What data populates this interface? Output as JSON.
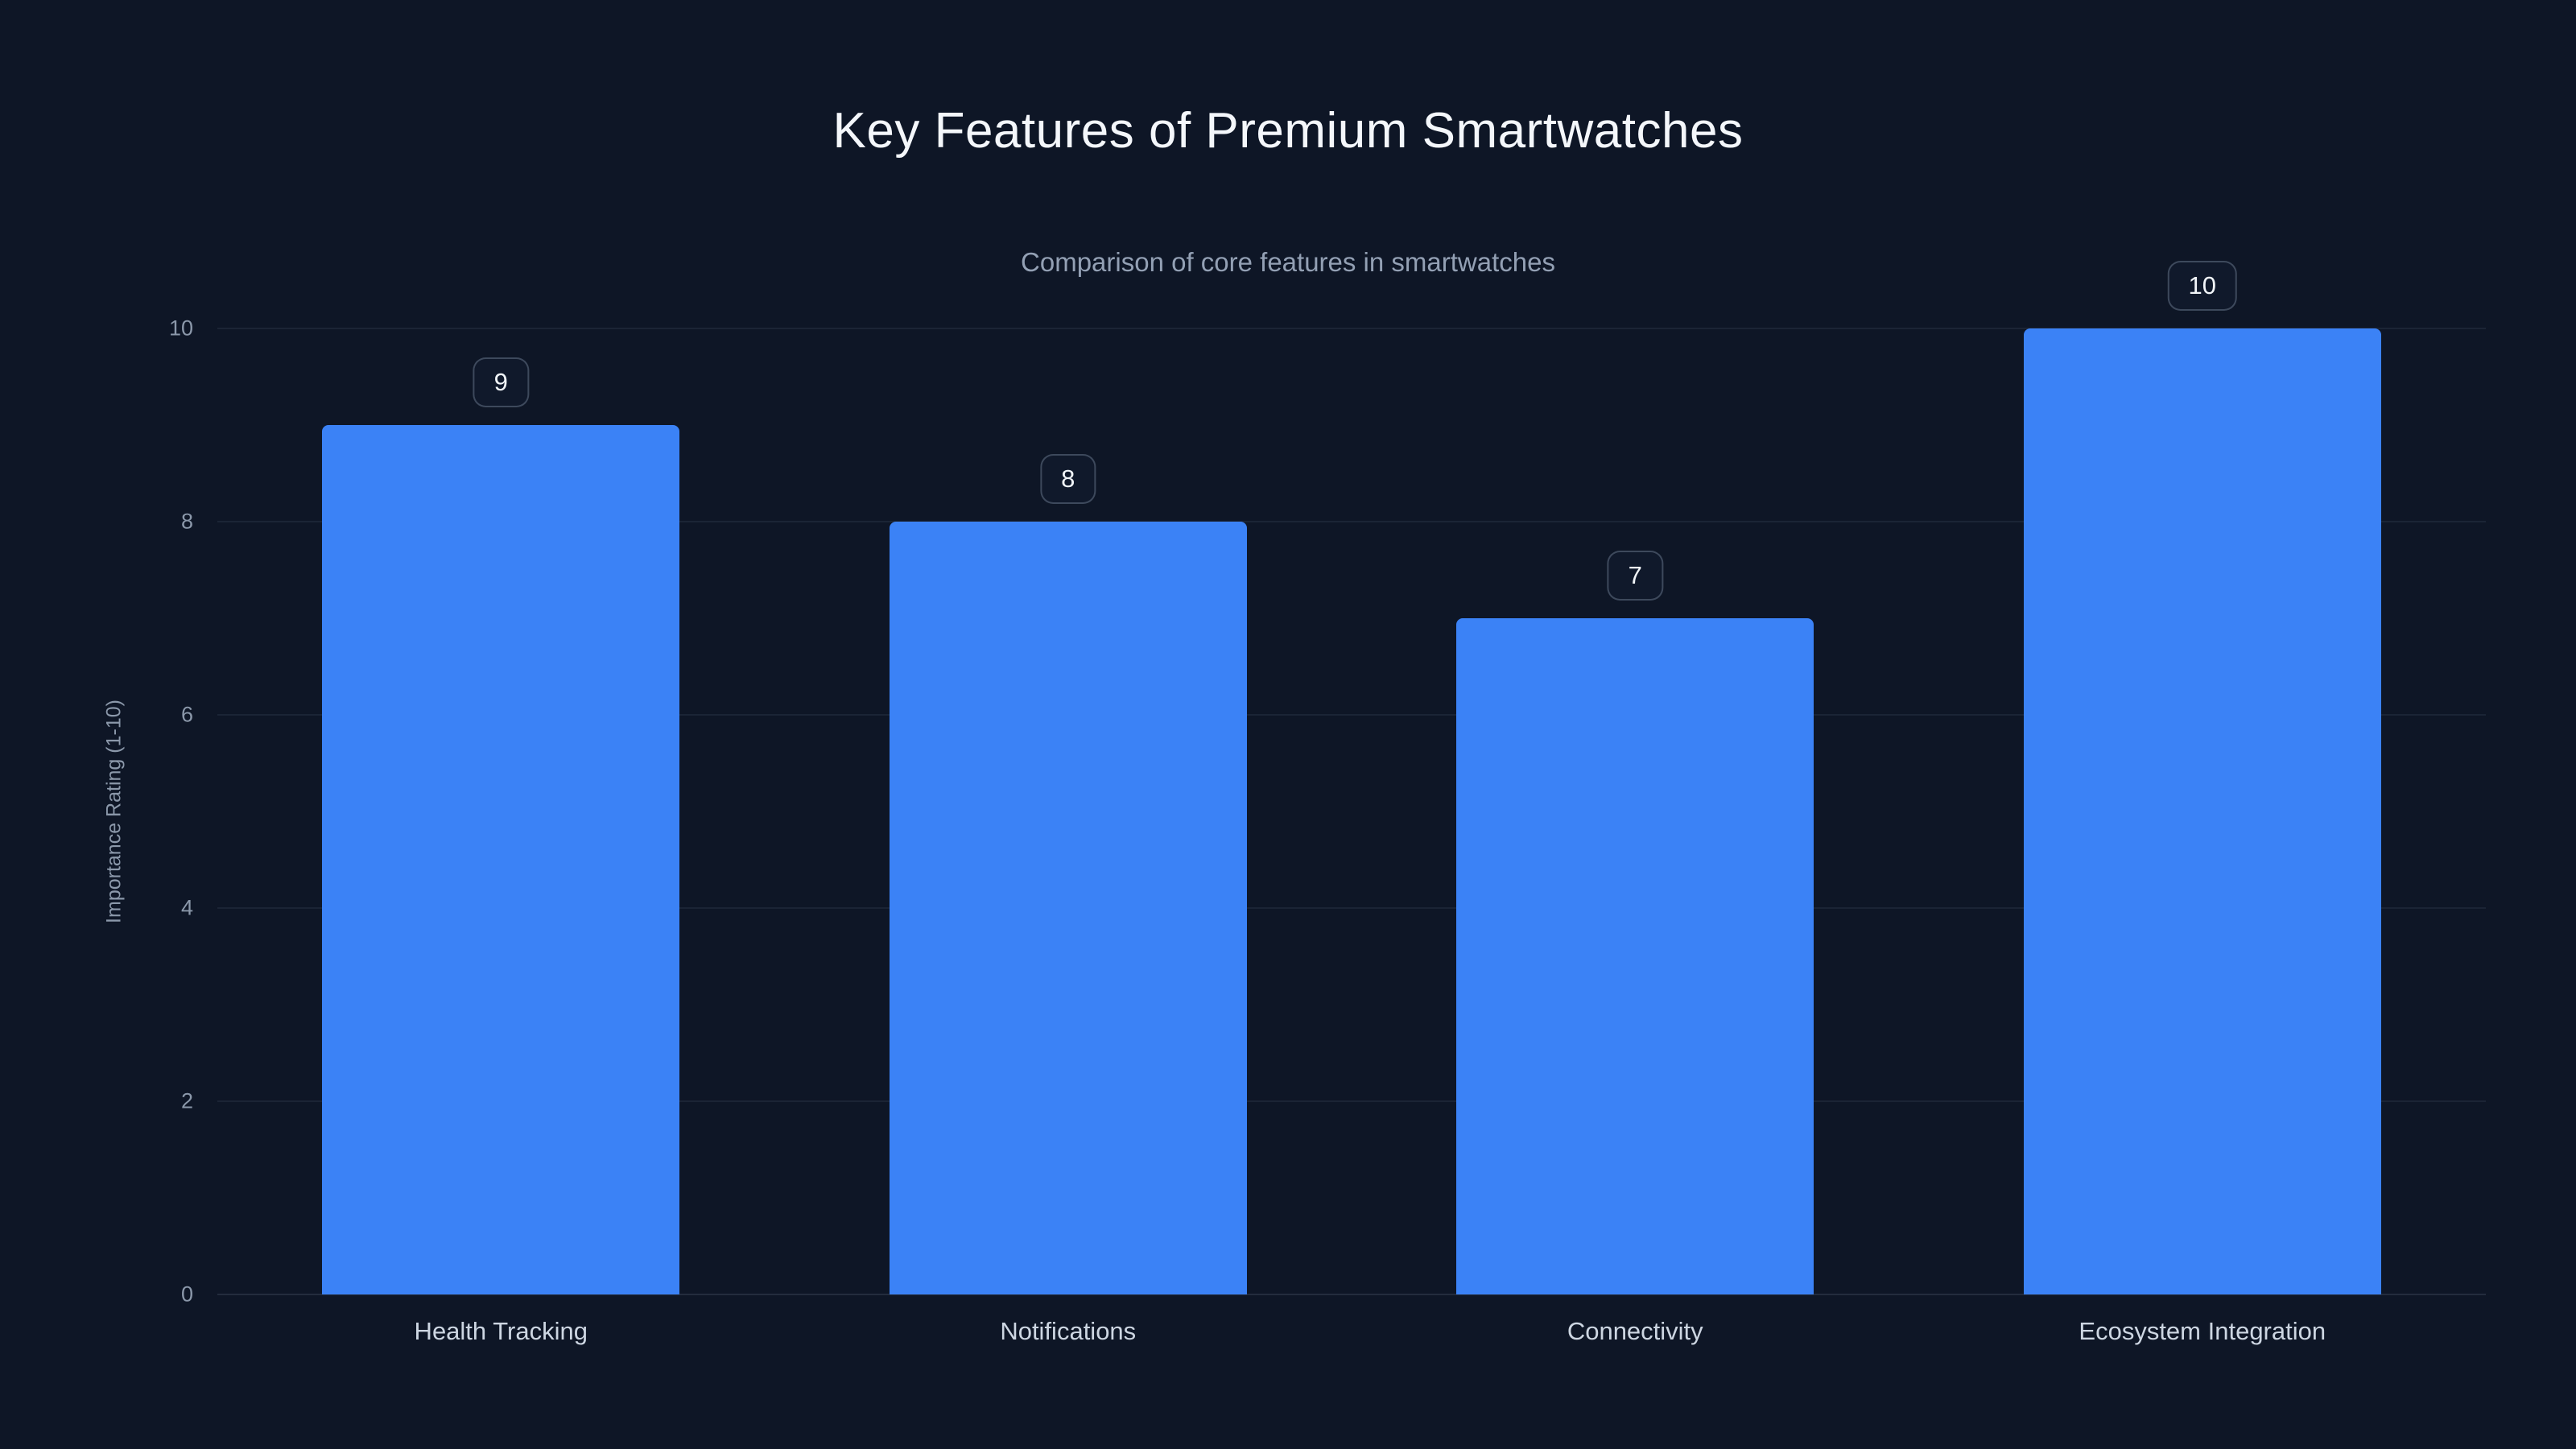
{
  "chart": {
    "title": "Key Features of Premium Smartwatches",
    "subtitle": "Comparison of core features in smartwatches",
    "ylabel": "Importance Rating (1-10)"
  },
  "chart_data": {
    "type": "bar",
    "title": "Key Features of Premium Smartwatches",
    "subtitle": "Comparison of core features in smartwatches",
    "categories": [
      "Health Tracking",
      "Notifications",
      "Connectivity",
      "Ecosystem Integration"
    ],
    "values": [
      9,
      8,
      7,
      10
    ],
    "value_labels": [
      "9",
      "8",
      "7",
      "10"
    ],
    "xlabel": "",
    "ylabel": "Importance Rating (1-10)",
    "ylim": [
      0,
      10
    ],
    "yticks": [
      0,
      2,
      4,
      6,
      8,
      10
    ],
    "grid": true,
    "legend": false,
    "bar_color": "#3b82f6",
    "background_color": "#0e1626",
    "title_color": "#f4f7fb",
    "subtitle_color": "#93a0b4",
    "axis_text_color": "#8b98aa"
  }
}
